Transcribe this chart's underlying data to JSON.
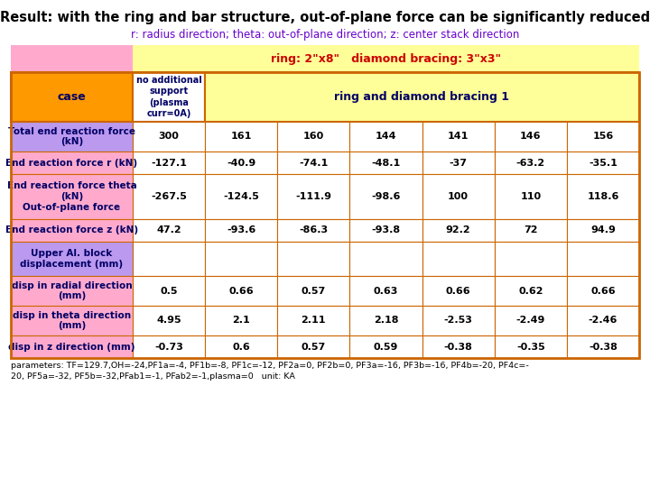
{
  "title": "Result: with the ring and bar structure, out-of-plane force can be significantly reduced",
  "subtitle": "r: radius direction; theta: out-of-plane direction; z: center stack direction",
  "ring_label": "ring: 2\"x8\"   diamond bracing: 3\"x3\"",
  "data_rows": [
    {
      "label": "Total end reaction force\n(kN)",
      "values": [
        "300",
        "161",
        "160",
        "144",
        "141",
        "146",
        "156"
      ],
      "label_bg": "#bb99ee"
    },
    {
      "label": "End reaction force r (kN)",
      "values": [
        "-127.1",
        "-40.9",
        "-74.1",
        "-48.1",
        "-37",
        "-63.2",
        "-35.1"
      ],
      "label_bg": "#ffaacc"
    },
    {
      "label": "End reaction force theta\n(kN)\nOut-of-plane force",
      "values": [
        "-267.5",
        "-124.5",
        "-111.9",
        "-98.6",
        "100",
        "110",
        "118.6"
      ],
      "label_bg": "#ffaacc"
    },
    {
      "label": "End reaction force z (kN)",
      "values": [
        "47.2",
        "-93.6",
        "-86.3",
        "-93.8",
        "92.2",
        "72",
        "94.9"
      ],
      "label_bg": "#ffaacc"
    },
    {
      "label": "Upper Al. block\ndisplacement (mm)",
      "values": [
        "",
        "",
        "",
        "",
        "",
        "",
        ""
      ],
      "label_bg": "#bb99ee"
    },
    {
      "label": "disp in radial direction\n(mm)",
      "values": [
        "0.5",
        "0.66",
        "0.57",
        "0.63",
        "0.66",
        "0.62",
        "0.66"
      ],
      "label_bg": "#ffaacc"
    },
    {
      "label": "disp in theta direction\n(mm)",
      "values": [
        "4.95",
        "2.1",
        "2.11",
        "2.18",
        "-2.53",
        "-2.49",
        "-2.46"
      ],
      "label_bg": "#ffaacc"
    },
    {
      "label": "disp in z direction (mm)",
      "values": [
        "-0.73",
        "0.6",
        "0.57",
        "0.59",
        "-0.38",
        "-0.35",
        "-0.38"
      ],
      "label_bg": "#ffaacc"
    }
  ],
  "parameters": "parameters: TF=129.7,OH=-24,PF1a=-4, PF1b=-8, PF1c=-12, PF2a=0, PF2b=0, PF3a=-16, PF3b=-16, PF4b=-20, PF4c=-\n20, PF5a=-32, PF5b=-32,PFab1=-1, PFab2=-1,plasma=0   unit: KA",
  "title_color": "#000000",
  "subtitle_color": "#6600cc",
  "ring_label_color": "#cc0000",
  "header_bg_case": "#ff9900",
  "header_bg_yellow": "#ffff99",
  "pink_bg": "#ffaacc",
  "purple_bg": "#bb99ee",
  "white_bg": "#ffffff",
  "border_color": "#cc6600",
  "text_color": "#000066"
}
